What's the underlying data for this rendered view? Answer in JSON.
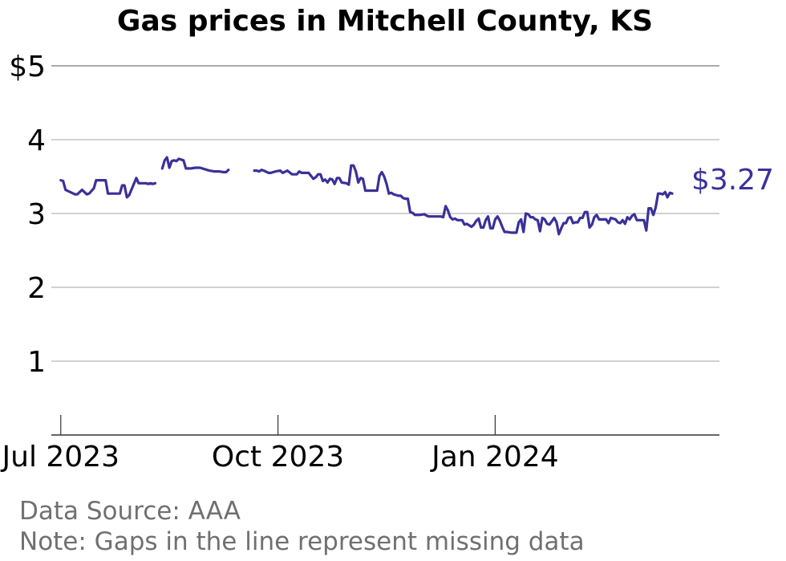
{
  "chart_data": {
    "type": "line",
    "title": "Gas prices in Mitchell County, KS",
    "xlabel": "",
    "ylabel": "",
    "ylim": [
      0,
      5
    ],
    "xlim": [
      "2023-06-27",
      "2024-04-05"
    ],
    "y_ticks": [
      {
        "value": 5,
        "label": "$5"
      },
      {
        "value": 4,
        "label": "4"
      },
      {
        "value": 3,
        "label": "3"
      },
      {
        "value": 2,
        "label": "2"
      },
      {
        "value": 1,
        "label": "1"
      }
    ],
    "x_ticks": [
      {
        "date": "2023-07-01",
        "label": "Jul 2023"
      },
      {
        "date": "2023-10-01",
        "label": "Oct 2023"
      },
      {
        "date": "2024-01-01",
        "label": "Jan 2024"
      }
    ],
    "grid": true,
    "series": [
      {
        "color": "#3a3199",
        "end_label": "$3.27",
        "segments": [
          [
            [
              "2023-07-01",
              3.45
            ],
            [
              "2023-07-02",
              3.44
            ],
            [
              "2023-07-03",
              3.32
            ],
            [
              "2023-07-05",
              3.29
            ],
            [
              "2023-07-07",
              3.26
            ],
            [
              "2023-07-08",
              3.26
            ],
            [
              "2023-07-10",
              3.32
            ],
            [
              "2023-07-12",
              3.26
            ],
            [
              "2023-07-13",
              3.27
            ],
            [
              "2023-07-15",
              3.34
            ],
            [
              "2023-07-16",
              3.45
            ],
            [
              "2023-07-18",
              3.45
            ],
            [
              "2023-07-20",
              3.45
            ],
            [
              "2023-07-21",
              3.27
            ],
            [
              "2023-07-23",
              3.27
            ],
            [
              "2023-07-25",
              3.27
            ],
            [
              "2023-07-26",
              3.27
            ],
            [
              "2023-07-27",
              3.38
            ],
            [
              "2023-07-28",
              3.38
            ],
            [
              "2023-07-29",
              3.22
            ],
            [
              "2023-07-30",
              3.25
            ],
            [
              "2023-08-02",
              3.48
            ],
            [
              "2023-08-03",
              3.41
            ],
            [
              "2023-08-04",
              3.41
            ],
            [
              "2023-08-06",
              3.41
            ],
            [
              "2023-08-07",
              3.4
            ],
            [
              "2023-08-08",
              3.41
            ],
            [
              "2023-08-09",
              3.4
            ],
            [
              "2023-08-10",
              3.41
            ]
          ],
          [
            [
              "2023-08-13",
              3.61
            ],
            [
              "2023-08-14",
              3.72
            ],
            [
              "2023-08-15",
              3.76
            ],
            [
              "2023-08-16",
              3.62
            ],
            [
              "2023-08-17",
              3.71
            ],
            [
              "2023-08-18",
              3.72
            ],
            [
              "2023-08-19",
              3.71
            ],
            [
              "2023-08-20",
              3.74
            ],
            [
              "2023-08-22",
              3.72
            ],
            [
              "2023-08-23",
              3.61
            ],
            [
              "2023-08-25",
              3.61
            ],
            [
              "2023-08-27",
              3.62
            ],
            [
              "2023-08-29",
              3.62
            ],
            [
              "2023-08-31",
              3.6
            ],
            [
              "2023-09-02",
              3.58
            ],
            [
              "2023-09-04",
              3.57
            ],
            [
              "2023-09-06",
              3.57
            ],
            [
              "2023-09-08",
              3.56
            ],
            [
              "2023-09-09",
              3.56
            ],
            [
              "2023-09-10",
              3.59
            ]
          ],
          [
            [
              "2023-09-21",
              3.58
            ],
            [
              "2023-09-22",
              3.58
            ],
            [
              "2023-09-23",
              3.57
            ],
            [
              "2023-09-24",
              3.59
            ],
            [
              "2023-09-25",
              3.58
            ],
            [
              "2023-09-27",
              3.55
            ],
            [
              "2023-09-28",
              3.55
            ],
            [
              "2023-09-30",
              3.57
            ],
            [
              "2023-10-02",
              3.58
            ],
            [
              "2023-10-03",
              3.55
            ],
            [
              "2023-10-05",
              3.58
            ],
            [
              "2023-10-07",
              3.53
            ],
            [
              "2023-10-09",
              3.53
            ],
            [
              "2023-10-10",
              3.57
            ],
            [
              "2023-10-11",
              3.55
            ],
            [
              "2023-10-12",
              3.55
            ],
            [
              "2023-10-14",
              3.55
            ],
            [
              "2023-10-15",
              3.51
            ],
            [
              "2023-10-16",
              3.47
            ],
            [
              "2023-10-17",
              3.49
            ],
            [
              "2023-10-18",
              3.53
            ],
            [
              "2023-10-19",
              3.53
            ],
            [
              "2023-10-20",
              3.44
            ],
            [
              "2023-10-21",
              3.46
            ],
            [
              "2023-10-22",
              3.42
            ],
            [
              "2023-10-23",
              3.47
            ],
            [
              "2023-10-24",
              3.46
            ],
            [
              "2023-10-25",
              3.4
            ],
            [
              "2023-10-26",
              3.48
            ],
            [
              "2023-10-27",
              3.48
            ],
            [
              "2023-10-28",
              3.42
            ],
            [
              "2023-10-30",
              3.41
            ],
            [
              "2023-10-31",
              3.39
            ],
            [
              "2023-11-01",
              3.65
            ],
            [
              "2023-11-02",
              3.65
            ],
            [
              "2023-11-03",
              3.57
            ],
            [
              "2023-11-04",
              3.42
            ],
            [
              "2023-11-05",
              3.48
            ],
            [
              "2023-11-06",
              3.47
            ],
            [
              "2023-11-07",
              3.31
            ],
            [
              "2023-11-09",
              3.31
            ],
            [
              "2023-11-11",
              3.31
            ],
            [
              "2023-11-12",
              3.31
            ],
            [
              "2023-11-13",
              3.51
            ],
            [
              "2023-11-14",
              3.56
            ],
            [
              "2023-11-15",
              3.5
            ],
            [
              "2023-11-16",
              3.4
            ],
            [
              "2023-11-17",
              3.27
            ],
            [
              "2023-11-18",
              3.28
            ],
            [
              "2023-11-19",
              3.26
            ],
            [
              "2023-11-20",
              3.25
            ],
            [
              "2023-11-21",
              3.24
            ],
            [
              "2023-11-22",
              3.24
            ],
            [
              "2023-11-23",
              3.21
            ],
            [
              "2023-11-24",
              3.2
            ],
            [
              "2023-11-25",
              3.2
            ],
            [
              "2023-11-26",
              3.02
            ],
            [
              "2023-11-27",
              3.01
            ],
            [
              "2023-11-28",
              2.98
            ],
            [
              "2023-11-30",
              2.98
            ],
            [
              "2023-12-02",
              2.99
            ],
            [
              "2023-12-03",
              2.97
            ],
            [
              "2023-12-04",
              2.96
            ],
            [
              "2023-12-06",
              2.96
            ],
            [
              "2023-12-07",
              2.96
            ],
            [
              "2023-12-09",
              2.96
            ],
            [
              "2023-12-10",
              2.95
            ],
            [
              "2023-12-11",
              3.1
            ],
            [
              "2023-12-12",
              3.04
            ],
            [
              "2023-12-13",
              2.95
            ],
            [
              "2023-12-14",
              2.92
            ],
            [
              "2023-12-15",
              2.93
            ],
            [
              "2023-12-16",
              2.91
            ],
            [
              "2023-12-18",
              2.91
            ],
            [
              "2023-12-19",
              2.85
            ],
            [
              "2023-12-20",
              2.86
            ],
            [
              "2023-12-21",
              2.84
            ],
            [
              "2023-12-22",
              2.82
            ],
            [
              "2023-12-23",
              2.85
            ],
            [
              "2023-12-24",
              2.9
            ],
            [
              "2023-12-25",
              2.93
            ],
            [
              "2023-12-26",
              2.81
            ],
            [
              "2023-12-27",
              2.81
            ],
            [
              "2023-12-28",
              2.91
            ],
            [
              "2023-12-29",
              2.96
            ],
            [
              "2023-12-30",
              2.8
            ],
            [
              "2023-12-31",
              2.8
            ],
            [
              "2024-01-01",
              2.92
            ],
            [
              "2024-01-02",
              2.96
            ],
            [
              "2024-01-03",
              2.9
            ],
            [
              "2024-01-04",
              2.82
            ],
            [
              "2024-01-05",
              2.75
            ],
            [
              "2024-01-06",
              2.75
            ],
            [
              "2024-01-08",
              2.74
            ],
            [
              "2024-01-09",
              2.74
            ],
            [
              "2024-01-10",
              2.74
            ],
            [
              "2024-01-11",
              2.88
            ],
            [
              "2024-01-12",
              2.92
            ],
            [
              "2024-01-13",
              2.75
            ],
            [
              "2024-01-14",
              3.0
            ],
            [
              "2024-01-15",
              2.99
            ],
            [
              "2024-01-16",
              2.95
            ],
            [
              "2024-01-17",
              2.95
            ],
            [
              "2024-01-18",
              2.92
            ],
            [
              "2024-01-19",
              2.91
            ],
            [
              "2024-01-20",
              2.76
            ],
            [
              "2024-01-21",
              2.94
            ],
            [
              "2024-01-22",
              2.92
            ],
            [
              "2024-01-23",
              2.86
            ],
            [
              "2024-01-24",
              2.85
            ],
            [
              "2024-01-26",
              2.94
            ],
            [
              "2024-01-27",
              2.88
            ],
            [
              "2024-01-28",
              2.72
            ],
            [
              "2024-01-29",
              2.8
            ],
            [
              "2024-01-30",
              2.87
            ],
            [
              "2024-01-31",
              2.87
            ],
            [
              "2024-02-01",
              2.94
            ],
            [
              "2024-02-02",
              2.95
            ],
            [
              "2024-02-03",
              2.87
            ],
            [
              "2024-02-04",
              2.88
            ],
            [
              "2024-02-05",
              2.88
            ],
            [
              "2024-02-06",
              2.94
            ],
            [
              "2024-02-07",
              2.94
            ],
            [
              "2024-02-08",
              3.02
            ],
            [
              "2024-02-09",
              3.02
            ],
            [
              "2024-02-10",
              2.81
            ],
            [
              "2024-02-11",
              2.85
            ],
            [
              "2024-02-12",
              2.95
            ],
            [
              "2024-02-13",
              2.98
            ],
            [
              "2024-02-14",
              2.92
            ],
            [
              "2024-02-15",
              2.92
            ],
            [
              "2024-02-17",
              2.92
            ],
            [
              "2024-02-18",
              2.87
            ],
            [
              "2024-02-19",
              2.94
            ],
            [
              "2024-02-20",
              2.93
            ],
            [
              "2024-02-21",
              2.92
            ],
            [
              "2024-02-22",
              2.88
            ],
            [
              "2024-02-23",
              2.87
            ],
            [
              "2024-02-24",
              2.91
            ],
            [
              "2024-02-25",
              2.86
            ],
            [
              "2024-02-26",
              2.95
            ],
            [
              "2024-02-27",
              2.92
            ],
            [
              "2024-02-28",
              2.97
            ],
            [
              "2024-02-29",
              2.99
            ],
            [
              "2024-03-01",
              2.91
            ],
            [
              "2024-03-02",
              2.91
            ],
            [
              "2024-03-03",
              2.91
            ],
            [
              "2024-03-04",
              2.91
            ],
            [
              "2024-03-05",
              2.77
            ],
            [
              "2024-03-06",
              3.07
            ],
            [
              "2024-03-07",
              3.07
            ],
            [
              "2024-03-08",
              2.98
            ],
            [
              "2024-03-09",
              3.08
            ],
            [
              "2024-03-10",
              3.27
            ],
            [
              "2024-03-11",
              3.27
            ],
            [
              "2024-03-12",
              3.26
            ],
            [
              "2024-03-13",
              3.29
            ],
            [
              "2024-03-14",
              3.22
            ],
            [
              "2024-03-15",
              3.28
            ],
            [
              "2024-03-16",
              3.27
            ]
          ]
        ]
      }
    ]
  },
  "footer": {
    "source": "Data Source: AAA",
    "note": "Note: Gaps in the line represent missing data"
  }
}
